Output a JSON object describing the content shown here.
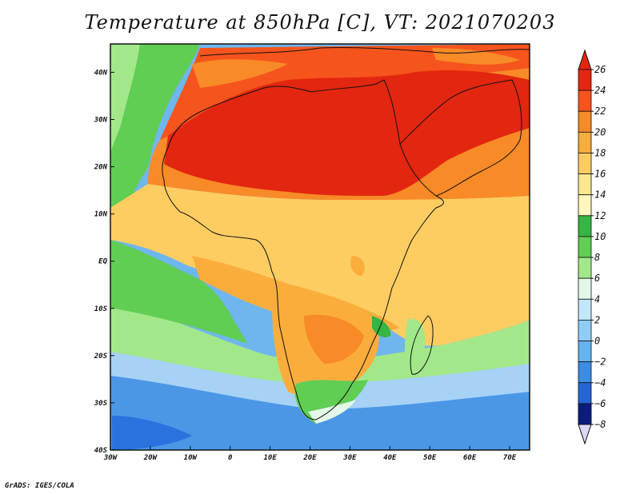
{
  "title": "Temperature at 850hPa [C], VT: 2021070203",
  "credit": "GrADS: IGES/COLA",
  "map": {
    "lon_range": [
      -30,
      75
    ],
    "lat_range": [
      -40,
      46
    ],
    "lon_ticks": [
      {
        "lon": -30,
        "label": "30W"
      },
      {
        "lon": -20,
        "label": "20W"
      },
      {
        "lon": -10,
        "label": "10W"
      },
      {
        "lon": 0,
        "label": "0"
      },
      {
        "lon": 10,
        "label": "10E"
      },
      {
        "lon": 20,
        "label": "20E"
      },
      {
        "lon": 30,
        "label": "30E"
      },
      {
        "lon": 40,
        "label": "40E"
      },
      {
        "lon": 50,
        "label": "50E"
      },
      {
        "lon": 60,
        "label": "60E"
      },
      {
        "lon": 70,
        "label": "70E"
      }
    ],
    "lat_ticks": [
      {
        "lat": 40,
        "label": "40N"
      },
      {
        "lat": 30,
        "label": "30N"
      },
      {
        "lat": 20,
        "label": "20N"
      },
      {
        "lat": 10,
        "label": "10N"
      },
      {
        "lat": 0,
        "label": "EQ"
      },
      {
        "lat": -10,
        "label": "10S"
      },
      {
        "lat": -20,
        "label": "20S"
      },
      {
        "lat": -30,
        "label": "30S"
      },
      {
        "lat": -40,
        "label": "40S"
      }
    ]
  },
  "colorbar": {
    "labels": [
      "26",
      "24",
      "22",
      "20",
      "18",
      "16",
      "14",
      "12",
      "10",
      "8",
      "6",
      "4",
      "2",
      "0",
      "−2",
      "−4",
      "−6",
      "−8"
    ],
    "colors": [
      "#e3260f",
      "#f5541d",
      "#f88a27",
      "#fbad3c",
      "#fdcd62",
      "#fee88f",
      "#fdf6bd",
      "#35b544",
      "#60cd53",
      "#a2e88b",
      "#e3f8e8",
      "#c3e6fa",
      "#8fcdf7",
      "#65b2f0",
      "#3c8de3",
      "#2566d6",
      "#1843b4",
      "#0b1c7e"
    ]
  }
}
